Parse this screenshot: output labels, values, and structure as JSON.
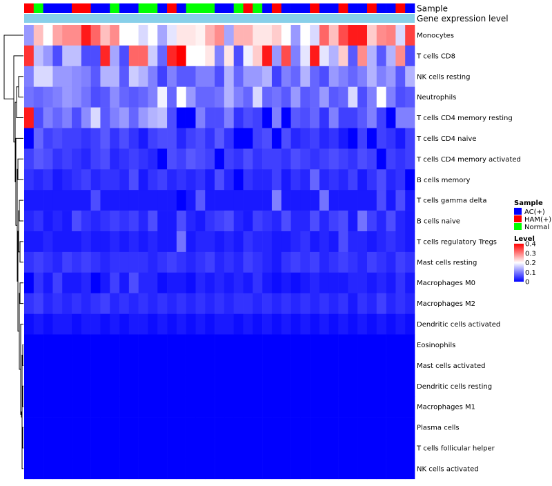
{
  "chart_data": {
    "type": "heatmap",
    "title": "",
    "annotation_tracks": [
      "Sample",
      "Gene expression level"
    ],
    "rows": [
      "Monocytes",
      "T cells CD8",
      "NK cells resting",
      "Neutrophils",
      "T cells CD4 memory resting",
      "T cells CD4 naive",
      "T cells CD4 memory activated",
      "B cells memory",
      "T cells gamma delta",
      "B cells naive",
      "T cells regulatory  Tregs",
      "Mast cells resting",
      "Macrophages M0",
      "Macrophages M2",
      "Dendritic cells activated",
      "Eosinophils",
      "Mast cells activated",
      "Dendritic cells resting",
      "Macrophages M1",
      "Plasma cells",
      "T cells follicular helper",
      "NK cells activated"
    ],
    "sample_groups": [
      "H",
      "N",
      "A",
      "A",
      "A",
      "H",
      "H",
      "A",
      "A",
      "N",
      "A",
      "A",
      "N",
      "N",
      "A",
      "H",
      "A",
      "N",
      "N",
      "N",
      "A",
      "A",
      "N",
      "H",
      "N",
      "A",
      "H",
      "A",
      "A",
      "A",
      "H",
      "A",
      "A",
      "H",
      "A",
      "A",
      "H",
      "A",
      "A",
      "H",
      "A"
    ],
    "values": [
      [
        0.12,
        0.25,
        0.2,
        0.27,
        0.29,
        0.29,
        0.38,
        0.32,
        0.25,
        0.29,
        0.2,
        0.2,
        0.17,
        0.2,
        0.13,
        0.18,
        0.22,
        0.22,
        0.21,
        0.26,
        0.29,
        0.13,
        0.26,
        0.26,
        0.22,
        0.22,
        0.24,
        0.2,
        0.12,
        0.2,
        0.17,
        0.32,
        0.25,
        0.34,
        0.38,
        0.38,
        0.24,
        0.29,
        0.3,
        0.17,
        0.35
      ],
      [
        0.36,
        0.15,
        0.12,
        0.06,
        0.15,
        0.15,
        0.06,
        0.06,
        0.37,
        0.13,
        0.06,
        0.32,
        0.32,
        0.16,
        0.08,
        0.37,
        0.4,
        0.2,
        0.2,
        0.22,
        0.1,
        0.22,
        0.06,
        0.19,
        0.24,
        0.38,
        0.12,
        0.34,
        0.1,
        0.18,
        0.38,
        0.18,
        0.14,
        0.24,
        0.07,
        0.29,
        0.14,
        0.07,
        0.14,
        0.29,
        0.06
      ],
      [
        0.1,
        0.17,
        0.17,
        0.12,
        0.12,
        0.11,
        0.1,
        0.07,
        0.14,
        0.14,
        0.07,
        0.16,
        0.14,
        0.1,
        0.05,
        0.1,
        0.07,
        0.07,
        0.1,
        0.1,
        0.06,
        0.14,
        0.08,
        0.12,
        0.12,
        0.14,
        0.05,
        0.1,
        0.08,
        0.14,
        0.08,
        0.06,
        0.12,
        0.1,
        0.08,
        0.1,
        0.14,
        0.1,
        0.12,
        0.07,
        0.14
      ],
      [
        0.09,
        0.08,
        0.09,
        0.1,
        0.12,
        0.11,
        0.09,
        0.06,
        0.07,
        0.11,
        0.08,
        0.07,
        0.08,
        0.1,
        0.19,
        0.08,
        0.2,
        0.12,
        0.08,
        0.08,
        0.09,
        0.14,
        0.1,
        0.08,
        0.17,
        0.08,
        0.09,
        0.07,
        0.12,
        0.07,
        0.08,
        0.12,
        0.07,
        0.08,
        0.17,
        0.06,
        0.1,
        0.2,
        0.1,
        0.06,
        0.07
      ],
      [
        0.38,
        0.06,
        0.1,
        0.08,
        0.1,
        0.06,
        0.11,
        0.17,
        0.07,
        0.1,
        0.12,
        0.08,
        0.12,
        0.14,
        0.15,
        0.06,
        0.0,
        0.0,
        0.1,
        0.06,
        0.06,
        0.1,
        0.04,
        0.06,
        0.05,
        0.0,
        0.1,
        0.0,
        0.07,
        0.06,
        0.08,
        0.04,
        0.1,
        0.05,
        0.05,
        0.07,
        0.1,
        0.05,
        0.0,
        0.1,
        0.1
      ],
      [
        0.0,
        0.08,
        0.05,
        0.06,
        0.05,
        0.05,
        0.04,
        0.05,
        0.07,
        0.04,
        0.06,
        0.04,
        0.02,
        0.05,
        0.06,
        0.06,
        0.03,
        0.05,
        0.06,
        0.04,
        0.07,
        0.04,
        0.0,
        0.0,
        0.05,
        0.06,
        0.0,
        0.06,
        0.03,
        0.04,
        0.05,
        0.03,
        0.04,
        0.02,
        0.0,
        0.05,
        0.0,
        0.05,
        0.04,
        0.02,
        0.05
      ],
      [
        0.05,
        0.07,
        0.06,
        0.04,
        0.05,
        0.04,
        0.03,
        0.05,
        0.06,
        0.03,
        0.04,
        0.05,
        0.04,
        0.03,
        0.0,
        0.06,
        0.05,
        0.07,
        0.06,
        0.05,
        0.0,
        0.05,
        0.04,
        0.06,
        0.04,
        0.05,
        0.05,
        0.04,
        0.06,
        0.05,
        0.04,
        0.05,
        0.06,
        0.05,
        0.04,
        0.06,
        0.05,
        0.0,
        0.05,
        0.04,
        0.05
      ],
      [
        0.04,
        0.03,
        0.04,
        0.02,
        0.03,
        0.04,
        0.05,
        0.03,
        0.04,
        0.04,
        0.03,
        0.06,
        0.02,
        0.04,
        0.05,
        0.03,
        0.04,
        0.03,
        0.04,
        0.02,
        0.06,
        0.03,
        0.0,
        0.04,
        0.03,
        0.03,
        0.05,
        0.02,
        0.04,
        0.03,
        0.08,
        0.03,
        0.04,
        0.03,
        0.05,
        0.02,
        0.04,
        0.06,
        0.03,
        0.04,
        0.0
      ],
      [
        0.02,
        0.02,
        0.02,
        0.02,
        0.02,
        0.02,
        0.02,
        0.06,
        0.02,
        0.02,
        0.02,
        0.02,
        0.02,
        0.02,
        0.02,
        0.02,
        0.0,
        0.02,
        0.07,
        0.02,
        0.02,
        0.02,
        0.02,
        0.02,
        0.02,
        0.02,
        0.1,
        0.02,
        0.02,
        0.02,
        0.02,
        0.09,
        0.02,
        0.02,
        0.02,
        0.02,
        0.02,
        0.06,
        0.02,
        0.06,
        0.02
      ],
      [
        0.03,
        0.04,
        0.02,
        0.03,
        0.02,
        0.06,
        0.04,
        0.03,
        0.04,
        0.05,
        0.04,
        0.05,
        0.03,
        0.06,
        0.02,
        0.02,
        0.06,
        0.03,
        0.02,
        0.04,
        0.05,
        0.06,
        0.03,
        0.02,
        0.05,
        0.04,
        0.03,
        0.06,
        0.03,
        0.03,
        0.06,
        0.03,
        0.05,
        0.06,
        0.02,
        0.09,
        0.05,
        0.03,
        0.06,
        0.03,
        0.02
      ],
      [
        0.02,
        0.02,
        0.03,
        0.02,
        0.02,
        0.02,
        0.03,
        0.02,
        0.02,
        0.03,
        0.02,
        0.03,
        0.02,
        0.03,
        0.02,
        0.02,
        0.09,
        0.02,
        0.03,
        0.03,
        0.02,
        0.03,
        0.02,
        0.04,
        0.03,
        0.03,
        0.02,
        0.02,
        0.03,
        0.04,
        0.02,
        0.03,
        0.02,
        0.06,
        0.03,
        0.03,
        0.02,
        0.03,
        0.04,
        0.03,
        0.02
      ],
      [
        0.04,
        0.05,
        0.04,
        0.03,
        0.05,
        0.04,
        0.05,
        0.04,
        0.03,
        0.04,
        0.04,
        0.04,
        0.04,
        0.03,
        0.04,
        0.05,
        0.04,
        0.03,
        0.04,
        0.05,
        0.03,
        0.04,
        0.03,
        0.05,
        0.04,
        0.03,
        0.02,
        0.04,
        0.05,
        0.04,
        0.05,
        0.03,
        0.04,
        0.05,
        0.04,
        0.03,
        0.05,
        0.04,
        0.03,
        0.05,
        0.04
      ],
      [
        0.0,
        0.04,
        0.02,
        0.05,
        0.02,
        0.02,
        0.03,
        0.0,
        0.02,
        0.05,
        0.02,
        0.06,
        0.03,
        0.03,
        0.01,
        0.02,
        0.02,
        0.01,
        0.03,
        0.02,
        0.03,
        0.02,
        0.03,
        0.02,
        0.04,
        0.02,
        0.01,
        0.02,
        0.01,
        0.02,
        0.03,
        0.02,
        0.02,
        0.02,
        0.03,
        0.03,
        0.02,
        0.03,
        0.02,
        0.04,
        0.02
      ],
      [
        0.04,
        0.05,
        0.03,
        0.04,
        0.03,
        0.04,
        0.03,
        0.04,
        0.05,
        0.03,
        0.04,
        0.03,
        0.04,
        0.03,
        0.04,
        0.03,
        0.04,
        0.03,
        0.04,
        0.03,
        0.04,
        0.03,
        0.04,
        0.04,
        0.03,
        0.04,
        0.03,
        0.04,
        0.03,
        0.04,
        0.03,
        0.04,
        0.03,
        0.04,
        0.02,
        0.04,
        0.03,
        0.05,
        0.03,
        0.04,
        0.03
      ],
      [
        0.01,
        0.02,
        0.01,
        0.02,
        0.02,
        0.01,
        0.02,
        0.02,
        0.01,
        0.02,
        0.01,
        0.02,
        0.02,
        0.01,
        0.02,
        0.01,
        0.02,
        0.01,
        0.02,
        0.01,
        0.02,
        0.02,
        0.01,
        0.02,
        0.01,
        0.02,
        0.01,
        0.02,
        0.01,
        0.02,
        0.01,
        0.02,
        0.01,
        0.02,
        0.01,
        0.02,
        0.01,
        0.02,
        0.01,
        0.02,
        0.01
      ],
      [
        0.0,
        0.0,
        0.0,
        0.0,
        0.0,
        0.0,
        0.0,
        0.0,
        0.0,
        0.0,
        0.0,
        0.0,
        0.0,
        0.0,
        0.0,
        0.0,
        0.0,
        0.0,
        0.0,
        0.0,
        0.0,
        0.0,
        0.0,
        0.0,
        0.0,
        0.0,
        0.0,
        0.0,
        0.0,
        0.0,
        0.0,
        0.0,
        0.0,
        0.0,
        0.0,
        0.0,
        0.0,
        0.0,
        0.0,
        0.0,
        0.0
      ],
      [
        0.0,
        0.0,
        0.0,
        0.0,
        0.0,
        0.0,
        0.0,
        0.0,
        0.0,
        0.0,
        0.0,
        0.0,
        0.0,
        0.0,
        0.0,
        0.0,
        0.0,
        0.0,
        0.0,
        0.0,
        0.0,
        0.0,
        0.0,
        0.0,
        0.0,
        0.0,
        0.0,
        0.0,
        0.0,
        0.0,
        0.0,
        0.0,
        0.0,
        0.0,
        0.0,
        0.0,
        0.0,
        0.0,
        0.0,
        0.0,
        0.0
      ],
      [
        0.0,
        0.0,
        0.0,
        0.0,
        0.0,
        0.0,
        0.0,
        0.0,
        0.0,
        0.0,
        0.0,
        0.0,
        0.0,
        0.0,
        0.0,
        0.0,
        0.0,
        0.0,
        0.0,
        0.0,
        0.0,
        0.0,
        0.0,
        0.0,
        0.0,
        0.0,
        0.0,
        0.0,
        0.0,
        0.0,
        0.0,
        0.0,
        0.0,
        0.0,
        0.0,
        0.0,
        0.0,
        0.0,
        0.0,
        0.0,
        0.0
      ],
      [
        0.0,
        0.0,
        0.0,
        0.0,
        0.0,
        0.0,
        0.0,
        0.0,
        0.0,
        0.0,
        0.0,
        0.0,
        0.0,
        0.0,
        0.0,
        0.0,
        0.0,
        0.0,
        0.0,
        0.0,
        0.0,
        0.0,
        0.0,
        0.0,
        0.0,
        0.0,
        0.0,
        0.0,
        0.0,
        0.0,
        0.0,
        0.0,
        0.0,
        0.0,
        0.0,
        0.0,
        0.0,
        0.0,
        0.0,
        0.0,
        0.0
      ],
      [
        0.0,
        0.0,
        0.0,
        0.0,
        0.0,
        0.0,
        0.0,
        0.0,
        0.0,
        0.0,
        0.0,
        0.0,
        0.0,
        0.0,
        0.0,
        0.0,
        0.0,
        0.0,
        0.0,
        0.0,
        0.0,
        0.0,
        0.0,
        0.0,
        0.0,
        0.0,
        0.0,
        0.0,
        0.0,
        0.0,
        0.0,
        0.0,
        0.0,
        0.0,
        0.0,
        0.0,
        0.0,
        0.0,
        0.0,
        0.0,
        0.0
      ],
      [
        0.0,
        0.0,
        0.0,
        0.0,
        0.0,
        0.0,
        0.0,
        0.0,
        0.0,
        0.0,
        0.0,
        0.0,
        0.0,
        0.0,
        0.0,
        0.0,
        0.0,
        0.0,
        0.0,
        0.0,
        0.0,
        0.0,
        0.0,
        0.0,
        0.0,
        0.0,
        0.0,
        0.0,
        0.0,
        0.0,
        0.0,
        0.0,
        0.0,
        0.0,
        0.0,
        0.0,
        0.0,
        0.0,
        0.0,
        0.0,
        0.0
      ],
      [
        0.0,
        0.0,
        0.0,
        0.0,
        0.0,
        0.0,
        0.0,
        0.0,
        0.0,
        0.0,
        0.0,
        0.0,
        0.0,
        0.0,
        0.0,
        0.0,
        0.0,
        0.0,
        0.0,
        0.0,
        0.0,
        0.0,
        0.0,
        0.0,
        0.0,
        0.0,
        0.0,
        0.0,
        0.0,
        0.0,
        0.0,
        0.0,
        0.0,
        0.0,
        0.0,
        0.0,
        0.0,
        0.0,
        0.0,
        0.0,
        0.0
      ]
    ],
    "gene_track_color": "#87cfe9",
    "color_scale": {
      "min": 0,
      "mid": 0.2,
      "max": 0.4,
      "low_color": "#0000ff",
      "mid_color": "#ffffff",
      "high_color": "#ff0000"
    },
    "legend_sample": {
      "title": "Sample",
      "entries": [
        {
          "key": "A",
          "label": "AC(+)",
          "color": "#0000ff"
        },
        {
          "key": "H",
          "label": "HAM(+)",
          "color": "#ff0000"
        },
        {
          "key": "N",
          "label": "Normal",
          "color": "#00ff00"
        }
      ]
    },
    "legend_level": {
      "title": "Level",
      "ticks": [
        0.4,
        0.3,
        0.2,
        0.1,
        0
      ]
    }
  }
}
